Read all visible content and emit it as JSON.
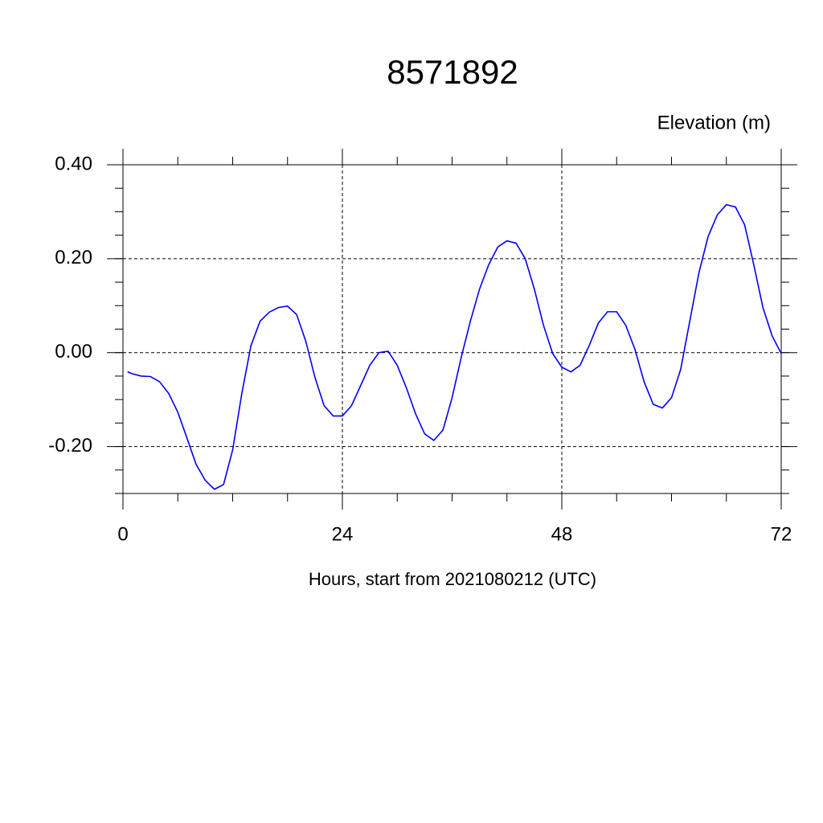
{
  "chart_data": {
    "type": "line",
    "title": "8571892",
    "subtitle": "Elevation (m)",
    "x_label": "Hours, start from 2021080212 (UTC)",
    "x": [
      0.5,
      1,
      2,
      3,
      4,
      5,
      6,
      7,
      8,
      9,
      10,
      11,
      12,
      13,
      14,
      15,
      16,
      17,
      18,
      19,
      20,
      21,
      22,
      23,
      24,
      25,
      26,
      27,
      28,
      29,
      30,
      31,
      32,
      33,
      34,
      35,
      36,
      37,
      38,
      39,
      40,
      41,
      42,
      43,
      44,
      45,
      46,
      47,
      48,
      49,
      50,
      51,
      52,
      53,
      54,
      55,
      56,
      57,
      58,
      59,
      60,
      61,
      62,
      63,
      64,
      65,
      66,
      67,
      68,
      69,
      70,
      71,
      72
    ],
    "series": [
      {
        "name": "Elevation",
        "color": "#0000ff",
        "values": [
          -0.041,
          -0.045,
          -0.05,
          -0.051,
          -0.062,
          -0.087,
          -0.127,
          -0.182,
          -0.238,
          -0.272,
          -0.291,
          -0.281,
          -0.207,
          -0.087,
          0.015,
          0.067,
          0.086,
          0.096,
          0.099,
          0.081,
          0.024,
          -0.053,
          -0.113,
          -0.135,
          -0.135,
          -0.113,
          -0.07,
          -0.027,
          0.0,
          0.003,
          -0.027,
          -0.075,
          -0.13,
          -0.173,
          -0.187,
          -0.165,
          -0.096,
          -0.01,
          0.067,
          0.135,
          0.187,
          0.225,
          0.238,
          0.233,
          0.2,
          0.135,
          0.058,
          -0.002,
          -0.031,
          -0.041,
          -0.027,
          0.015,
          0.063,
          0.087,
          0.087,
          0.058,
          0.007,
          -0.062,
          -0.11,
          -0.118,
          -0.096,
          -0.036,
          0.067,
          0.17,
          0.247,
          0.293,
          0.315,
          0.31,
          0.272,
          0.187,
          0.096,
          0.036,
          -0.002
        ]
      }
    ],
    "xlim": [
      0,
      72
    ],
    "xticks": [
      0,
      24,
      48,
      72
    ],
    "ylim": [
      -0.3,
      0.4
    ],
    "yticks": [
      {
        "value": -0.2,
        "label": "-0.20"
      },
      {
        "value": 0,
        "label": "0.00"
      },
      {
        "value": 0.2,
        "label": "0.20"
      },
      {
        "value": 0.4,
        "label": "0.40"
      }
    ],
    "grid": true
  }
}
